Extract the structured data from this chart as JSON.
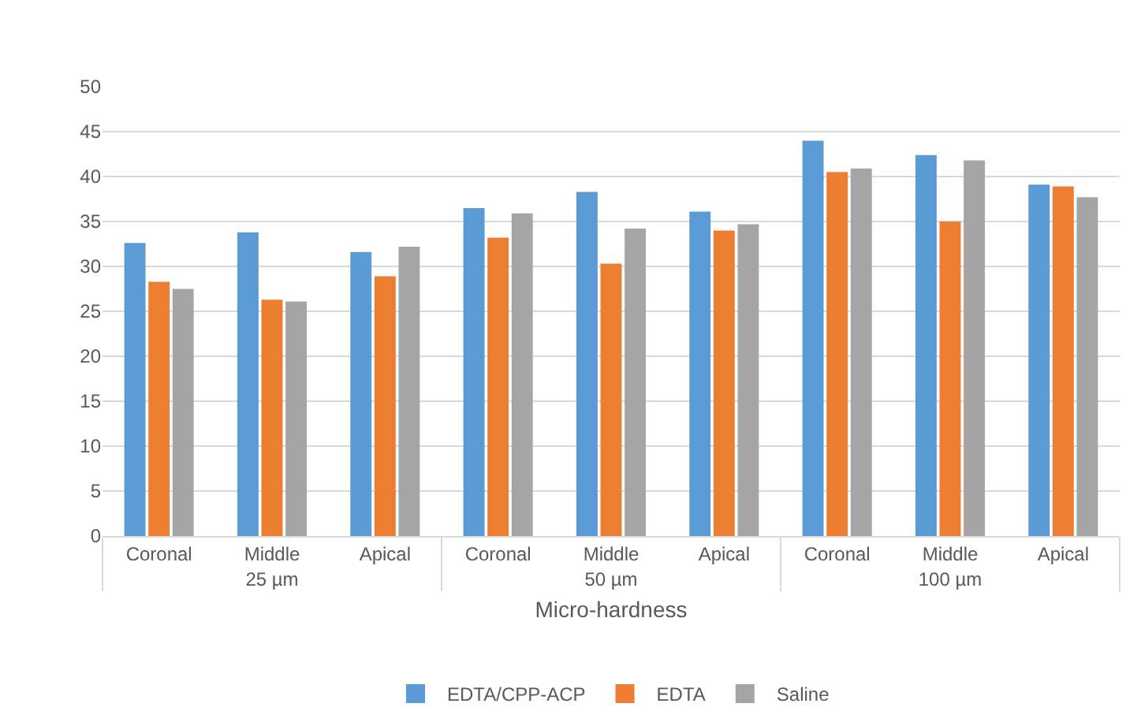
{
  "chart_data": {
    "type": "bar",
    "xlabel": "Micro-hardness",
    "categories": [
      "Coronal",
      "Middle",
      "Apical",
      "Coronal",
      "Middle",
      "Apical",
      "Coronal",
      "Middle",
      "Apical"
    ],
    "annotations": [
      "25 µm",
      "50 µm",
      "100 µm"
    ],
    "series": [
      {
        "name": "EDTA/CPP-ACP",
        "color": "#5b9bd5",
        "values": [
          32.6,
          33.8,
          31.6,
          36.5,
          38.3,
          36.1,
          44.0,
          42.4,
          39.1
        ]
      },
      {
        "name": "EDTA",
        "color": "#ed7d31",
        "values": [
          28.3,
          26.3,
          28.9,
          33.2,
          30.3,
          34.0,
          40.5,
          35.0,
          38.9
        ]
      },
      {
        "name": "Saline",
        "color": "#a5a5a5",
        "values": [
          27.5,
          26.1,
          32.2,
          35.9,
          34.2,
          34.7,
          40.9,
          41.8,
          37.7
        ]
      }
    ],
    "ylim": [
      0,
      50
    ],
    "yticks": [
      0,
      5,
      10,
      15,
      20,
      25,
      30,
      35,
      40,
      45,
      50
    ],
    "grid": "y",
    "legend": "bottom"
  }
}
